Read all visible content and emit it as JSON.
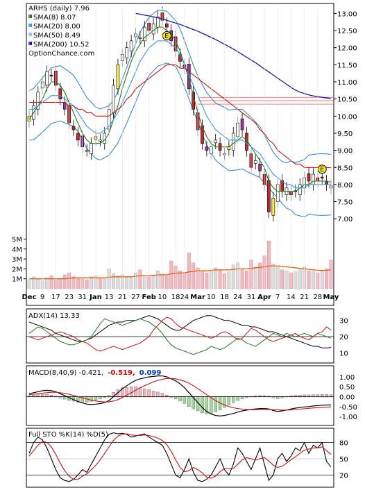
{
  "chart_data": [
    {
      "type": "candlestick",
      "panel": "price",
      "legend": [
        {
          "text": "ARHS (daily) 7.96",
          "color": ""
        },
        {
          "text": "SMA(8) 8.07",
          "color": "#1a7a1a"
        },
        {
          "text": "SMA(20) 8.00",
          "color": "#3399dd"
        },
        {
          "text": "SMA(50) 8.49",
          "color": "#88c8ee"
        },
        {
          "text": "SMA(200) 10.52",
          "color": "#1a1aa0"
        }
      ],
      "watermark": "OptionChance.com",
      "y_ticks": [
        "13.00",
        "12.50",
        "12.00",
        "11.50",
        "11.00",
        "10.50",
        "10.00",
        "9.50",
        "9.00",
        "8.50",
        "8.00",
        "7.50",
        "7.00"
      ],
      "ylim": [
        6.7,
        13.15
      ],
      "earnings_marker": "E",
      "x_labels": [
        "Dec",
        "9",
        "17",
        "23",
        "31",
        "Jan",
        "13",
        "21",
        "27",
        "Feb",
        "10",
        "18",
        "24",
        "Mar",
        "10",
        "18",
        "24",
        "31",
        "Apr",
        "7",
        "14",
        "21",
        "28",
        "May"
      ],
      "close": [
        10.0,
        10.3,
        10.7,
        11.0,
        11.3,
        11.2,
        10.9,
        10.5,
        10.2,
        9.8,
        9.6,
        9.3,
        9.1,
        9.0,
        9.2,
        9.4,
        9.3,
        9.5,
        10.2,
        10.9,
        11.5,
        11.8,
        12.0,
        12.2,
        12.4,
        12.3,
        12.6,
        12.5,
        12.7,
        12.9,
        12.8,
        12.6,
        12.2,
        11.9,
        11.6,
        11.4,
        10.8,
        10.2,
        9.6,
        9.2,
        9.0,
        9.1,
        9.3,
        9.0,
        8.9,
        9.1,
        9.5,
        9.8,
        9.6,
        9.0,
        8.5,
        8.7,
        8.4,
        8.0,
        7.2,
        7.6,
        8.0,
        7.8,
        7.9,
        7.7,
        7.8,
        8.0,
        8.2,
        8.1,
        8.3,
        8.1,
        8.2,
        8.0,
        7.96
      ],
      "series": [
        {
          "name": "SMA(8)",
          "values": [
            9.9,
            10.1,
            10.3,
            10.5,
            10.8,
            11.0,
            11.0,
            10.9,
            10.7,
            10.4,
            10.1,
            9.8,
            9.5,
            9.3,
            9.2,
            9.2,
            9.2,
            9.3,
            9.5,
            9.9,
            10.3,
            10.8,
            11.2,
            11.6,
            11.9,
            12.1,
            12.3,
            12.4,
            12.5,
            12.6,
            12.6,
            12.5,
            12.4,
            12.2,
            11.9,
            11.5,
            11.1,
            10.6,
            10.1,
            9.7,
            9.4,
            9.2,
            9.1,
            9.1,
            9.1,
            9.1,
            9.2,
            9.3,
            9.4,
            9.3,
            9.1,
            8.9,
            8.7,
            8.5,
            8.1,
            7.9,
            7.8,
            7.8,
            7.8,
            7.8,
            7.8,
            7.9,
            8.0,
            8.0,
            8.1,
            8.1,
            8.1,
            8.1,
            8.07
          ]
        },
        {
          "name": "SMA(20)",
          "values": [
            10.2,
            10.2,
            10.3,
            10.4,
            10.5,
            10.6,
            10.6,
            10.6,
            10.5,
            10.4,
            10.3,
            10.1,
            9.9,
            9.7,
            9.6,
            9.5,
            9.5,
            9.6,
            9.7,
            9.9,
            10.1,
            10.4,
            10.7,
            11.0,
            11.3,
            11.6,
            11.8,
            12.0,
            12.1,
            12.2,
            12.2,
            12.2,
            12.1,
            12.0,
            11.8,
            11.5,
            11.2,
            10.9,
            10.6,
            10.3,
            10.0,
            9.8,
            9.6,
            9.5,
            9.4,
            9.3,
            9.3,
            9.3,
            9.3,
            9.2,
            9.1,
            9.0,
            8.9,
            8.7,
            8.5,
            8.3,
            8.2,
            8.1,
            8.0,
            8.0,
            7.9,
            7.9,
            7.9,
            8.0,
            8.0,
            8.0,
            8.0,
            8.0,
            8.0
          ]
        },
        {
          "name": "SMA(50)",
          "values": [
            10.4,
            10.4,
            10.4,
            10.4,
            10.4,
            10.4,
            10.4,
            10.4,
            10.4,
            10.3,
            10.3,
            10.2,
            10.2,
            10.1,
            10.1,
            10.0,
            10.0,
            10.0,
            10.0,
            10.1,
            10.2,
            10.3,
            10.5,
            10.6,
            10.8,
            10.9,
            11.0,
            11.1,
            11.2,
            11.3,
            11.4,
            11.5,
            11.5,
            11.5,
            11.4,
            11.4,
            11.3,
            11.2,
            11.1,
            11.0,
            10.9,
            10.8,
            10.7,
            10.6,
            10.5,
            10.4,
            10.3,
            10.2,
            10.1,
            10.0,
            9.9,
            9.8,
            9.6,
            9.5,
            9.3,
            9.2,
            9.0,
            8.9,
            8.8,
            8.7,
            8.6,
            8.6,
            8.5,
            8.5,
            8.5,
            8.5,
            8.5,
            8.5,
            8.49
          ]
        },
        {
          "name": "SMA(200)",
          "values": [
            null,
            null,
            null,
            null,
            null,
            null,
            null,
            null,
            null,
            null,
            null,
            null,
            null,
            null,
            null,
            null,
            null,
            null,
            null,
            null,
            null,
            null,
            null,
            null,
            13.0,
            12.98,
            12.95,
            12.93,
            12.9,
            12.87,
            12.84,
            12.8,
            12.76,
            12.72,
            12.68,
            12.63,
            12.58,
            12.53,
            12.48,
            12.42,
            12.36,
            12.3,
            12.24,
            12.17,
            12.1,
            12.03,
            11.96,
            11.88,
            11.8,
            11.72,
            11.64,
            11.56,
            11.47,
            11.38,
            11.29,
            11.2,
            11.11,
            11.02,
            10.93,
            10.84,
            10.76,
            10.7,
            10.66,
            10.62,
            10.59,
            10.57,
            10.55,
            10.53,
            10.52
          ]
        }
      ]
    },
    {
      "type": "bar",
      "panel": "volume",
      "y_ticks": [
        "5M",
        "4M",
        "3M",
        "2M",
        "1M"
      ],
      "ylim": [
        0,
        5.8
      ],
      "values": [
        0.9,
        1.2,
        1.0,
        0.8,
        1.1,
        1.3,
        0.9,
        1.0,
        1.4,
        1.6,
        1.2,
        1.1,
        1.0,
        0.9,
        1.2,
        1.3,
        1.1,
        1.0,
        2.0,
        1.5,
        1.3,
        1.4,
        1.2,
        1.1,
        1.6,
        1.9,
        1.3,
        1.2,
        1.4,
        1.8,
        1.5,
        1.3,
        2.8,
        2.3,
        1.8,
        1.6,
        3.6,
        2.6,
        2.1,
        1.7,
        1.6,
        1.8,
        2.1,
        1.9,
        1.5,
        1.7,
        2.4,
        2.6,
        2.0,
        1.8,
        2.9,
        2.2,
        2.6,
        3.3,
        4.8,
        2.5,
        2.2,
        1.9,
        1.8,
        1.6,
        1.7,
        1.9,
        2.2,
        1.8,
        1.7,
        1.6,
        1.8,
        2.0,
        2.9
      ],
      "ma": [
        1.0,
        1.0,
        1.0,
        1.0,
        1.0,
        1.0,
        1.0,
        1.0,
        1.0,
        1.05,
        1.1,
        1.1,
        1.1,
        1.1,
        1.1,
        1.1,
        1.1,
        1.1,
        1.15,
        1.2,
        1.2,
        1.2,
        1.2,
        1.2,
        1.25,
        1.3,
        1.3,
        1.3,
        1.35,
        1.4,
        1.4,
        1.4,
        1.5,
        1.55,
        1.6,
        1.6,
        1.7,
        1.75,
        1.8,
        1.8,
        1.8,
        1.85,
        1.9,
        1.9,
        1.9,
        1.9,
        1.95,
        2.0,
        2.0,
        2.0,
        2.05,
        2.1,
        2.15,
        2.2,
        2.3,
        2.3,
        2.3,
        2.25,
        2.2,
        2.15,
        2.1,
        2.05,
        2.0,
        1.95,
        1.9,
        1.85,
        1.85,
        1.85,
        1.9
      ]
    },
    {
      "type": "line",
      "panel": "ADX",
      "legend": [
        {
          "text": "ADX(14) 13.33",
          "color": ""
        }
      ],
      "y_ticks": [
        "30",
        "20",
        "10"
      ],
      "ylim": [
        5,
        35
      ],
      "reference_lines": [
        20
      ],
      "series": [
        {
          "name": "ADX",
          "values": [
            29,
            28,
            27,
            26,
            25,
            24,
            22,
            21,
            20,
            19,
            18,
            17,
            17,
            18,
            19,
            21,
            23,
            25,
            27,
            28,
            29,
            29,
            30,
            30,
            30,
            31,
            32,
            33,
            32,
            31,
            29,
            27,
            25,
            24,
            24,
            26,
            28,
            30,
            31,
            32,
            33,
            33,
            32,
            31,
            30,
            30,
            29,
            28,
            27,
            27,
            26,
            26,
            25,
            24,
            23,
            23,
            22,
            21,
            20,
            19,
            18,
            17,
            16,
            15,
            14,
            14,
            13,
            13,
            13.33
          ]
        },
        {
          "name": "+DI",
          "values": [
            22,
            24,
            26,
            25,
            23,
            21,
            19,
            17,
            16,
            15,
            15,
            16,
            17,
            18,
            20,
            24,
            28,
            31,
            30,
            29,
            28,
            27,
            28,
            29,
            30,
            31,
            30,
            29,
            27,
            25,
            22,
            18,
            15,
            13,
            12,
            11,
            10,
            9,
            10,
            11,
            12,
            14,
            13,
            12,
            13,
            15,
            17,
            19,
            18,
            16,
            15,
            14,
            16,
            18,
            20,
            22,
            21,
            20,
            22,
            21,
            20,
            21,
            22,
            21,
            20,
            22,
            21,
            20,
            19
          ]
        },
        {
          "name": "-DI",
          "values": [
            20,
            19,
            18,
            19,
            20,
            21,
            22,
            23,
            22,
            21,
            20,
            18,
            17,
            16,
            14,
            12,
            11,
            12,
            13,
            14,
            13,
            12,
            13,
            14,
            15,
            16,
            18,
            20,
            24,
            27,
            30,
            32,
            31,
            28,
            26,
            25,
            24,
            23,
            22,
            21,
            20,
            19,
            20,
            22,
            23,
            22,
            20,
            18,
            19,
            22,
            25,
            24,
            22,
            20,
            18,
            17,
            18,
            19,
            20,
            21,
            22,
            20,
            19,
            18,
            20,
            22,
            23,
            26,
            24
          ]
        }
      ]
    },
    {
      "type": "line",
      "panel": "MACD",
      "legend": [
        {
          "text": "MACD(8,40,9) -0.421,",
          "color": ""
        },
        {
          "text": "-0.519,",
          "color": "#dd0000"
        },
        {
          "text": "0.099",
          "color": "#0033cc"
        }
      ],
      "y_ticks": [
        "1.00",
        "0.50",
        "0.00",
        "-0.50",
        "-1.00"
      ],
      "ylim": [
        -1.35,
        1.35
      ],
      "reference_lines": [
        0
      ],
      "series": [
        {
          "name": "MACD",
          "values": [
            0.15,
            0.2,
            0.25,
            0.3,
            0.32,
            0.3,
            0.25,
            0.15,
            0.05,
            -0.05,
            -0.15,
            -0.25,
            -0.32,
            -0.38,
            -0.4,
            -0.38,
            -0.35,
            -0.3,
            -0.2,
            0.0,
            0.2,
            0.4,
            0.55,
            0.7,
            0.82,
            0.9,
            0.95,
            1.0,
            1.02,
            1.05,
            1.05,
            1.0,
            0.9,
            0.8,
            0.65,
            0.45,
            0.2,
            -0.05,
            -0.3,
            -0.55,
            -0.75,
            -0.88,
            -0.95,
            -0.98,
            -0.95,
            -0.9,
            -0.85,
            -0.78,
            -0.72,
            -0.68,
            -0.65,
            -0.62,
            -0.6,
            -0.6,
            -0.62,
            -0.7,
            -0.75,
            -0.72,
            -0.68,
            -0.62,
            -0.58,
            -0.55,
            -0.52,
            -0.5,
            -0.47,
            -0.45,
            -0.43,
            -0.42,
            -0.421
          ]
        },
        {
          "name": "Signal",
          "values": [
            0.1,
            0.12,
            0.15,
            0.18,
            0.2,
            0.22,
            0.22,
            0.2,
            0.16,
            0.12,
            0.06,
            0.0,
            -0.06,
            -0.12,
            -0.18,
            -0.22,
            -0.25,
            -0.27,
            -0.26,
            -0.22,
            -0.15,
            -0.05,
            0.08,
            0.2,
            0.32,
            0.45,
            0.55,
            0.65,
            0.75,
            0.82,
            0.88,
            0.92,
            0.92,
            0.9,
            0.85,
            0.78,
            0.68,
            0.55,
            0.4,
            0.25,
            0.1,
            -0.05,
            -0.2,
            -0.32,
            -0.42,
            -0.5,
            -0.56,
            -0.6,
            -0.63,
            -0.65,
            -0.66,
            -0.66,
            -0.66,
            -0.65,
            -0.65,
            -0.66,
            -0.67,
            -0.68,
            -0.68,
            -0.67,
            -0.65,
            -0.63,
            -0.61,
            -0.59,
            -0.57,
            -0.55,
            -0.54,
            -0.53,
            -0.519
          ]
        }
      ]
    },
    {
      "type": "line",
      "panel": "stochastic",
      "legend": [
        {
          "text": "Full STO %K(14) %D(5)",
          "color": ""
        }
      ],
      "y_ticks": [
        "80",
        "50",
        "20"
      ],
      "ylim": [
        0,
        100
      ],
      "reference_lines": [
        80,
        20
      ],
      "series": [
        {
          "name": "%K",
          "values": [
            60,
            80,
            90,
            85,
            70,
            50,
            30,
            15,
            10,
            8,
            12,
            20,
            30,
            25,
            40,
            55,
            70,
            85,
            95,
            98,
            96,
            97,
            95,
            90,
            92,
            94,
            96,
            90,
            85,
            80,
            75,
            60,
            40,
            20,
            15,
            30,
            50,
            25,
            10,
            8,
            12,
            20,
            35,
            50,
            30,
            20,
            40,
            70,
            60,
            45,
            30,
            50,
            70,
            40,
            10,
            20,
            50,
            60,
            45,
            55,
            70,
            65,
            80,
            60,
            75,
            70,
            80,
            45,
            35
          ]
        },
        {
          "name": "%D",
          "values": [
            55,
            65,
            75,
            82,
            80,
            72,
            58,
            42,
            28,
            18,
            12,
            12,
            18,
            22,
            30,
            38,
            48,
            60,
            72,
            84,
            92,
            95,
            96,
            94,
            93,
            93,
            94,
            93,
            91,
            88,
            84,
            76,
            64,
            48,
            34,
            26,
            28,
            34,
            30,
            24,
            16,
            14,
            18,
            26,
            32,
            32,
            32,
            40,
            48,
            52,
            50,
            48,
            50,
            52,
            46,
            38,
            34,
            36,
            42,
            48,
            54,
            60,
            66,
            68,
            70,
            70,
            72,
            65,
            58
          ]
        }
      ]
    }
  ]
}
